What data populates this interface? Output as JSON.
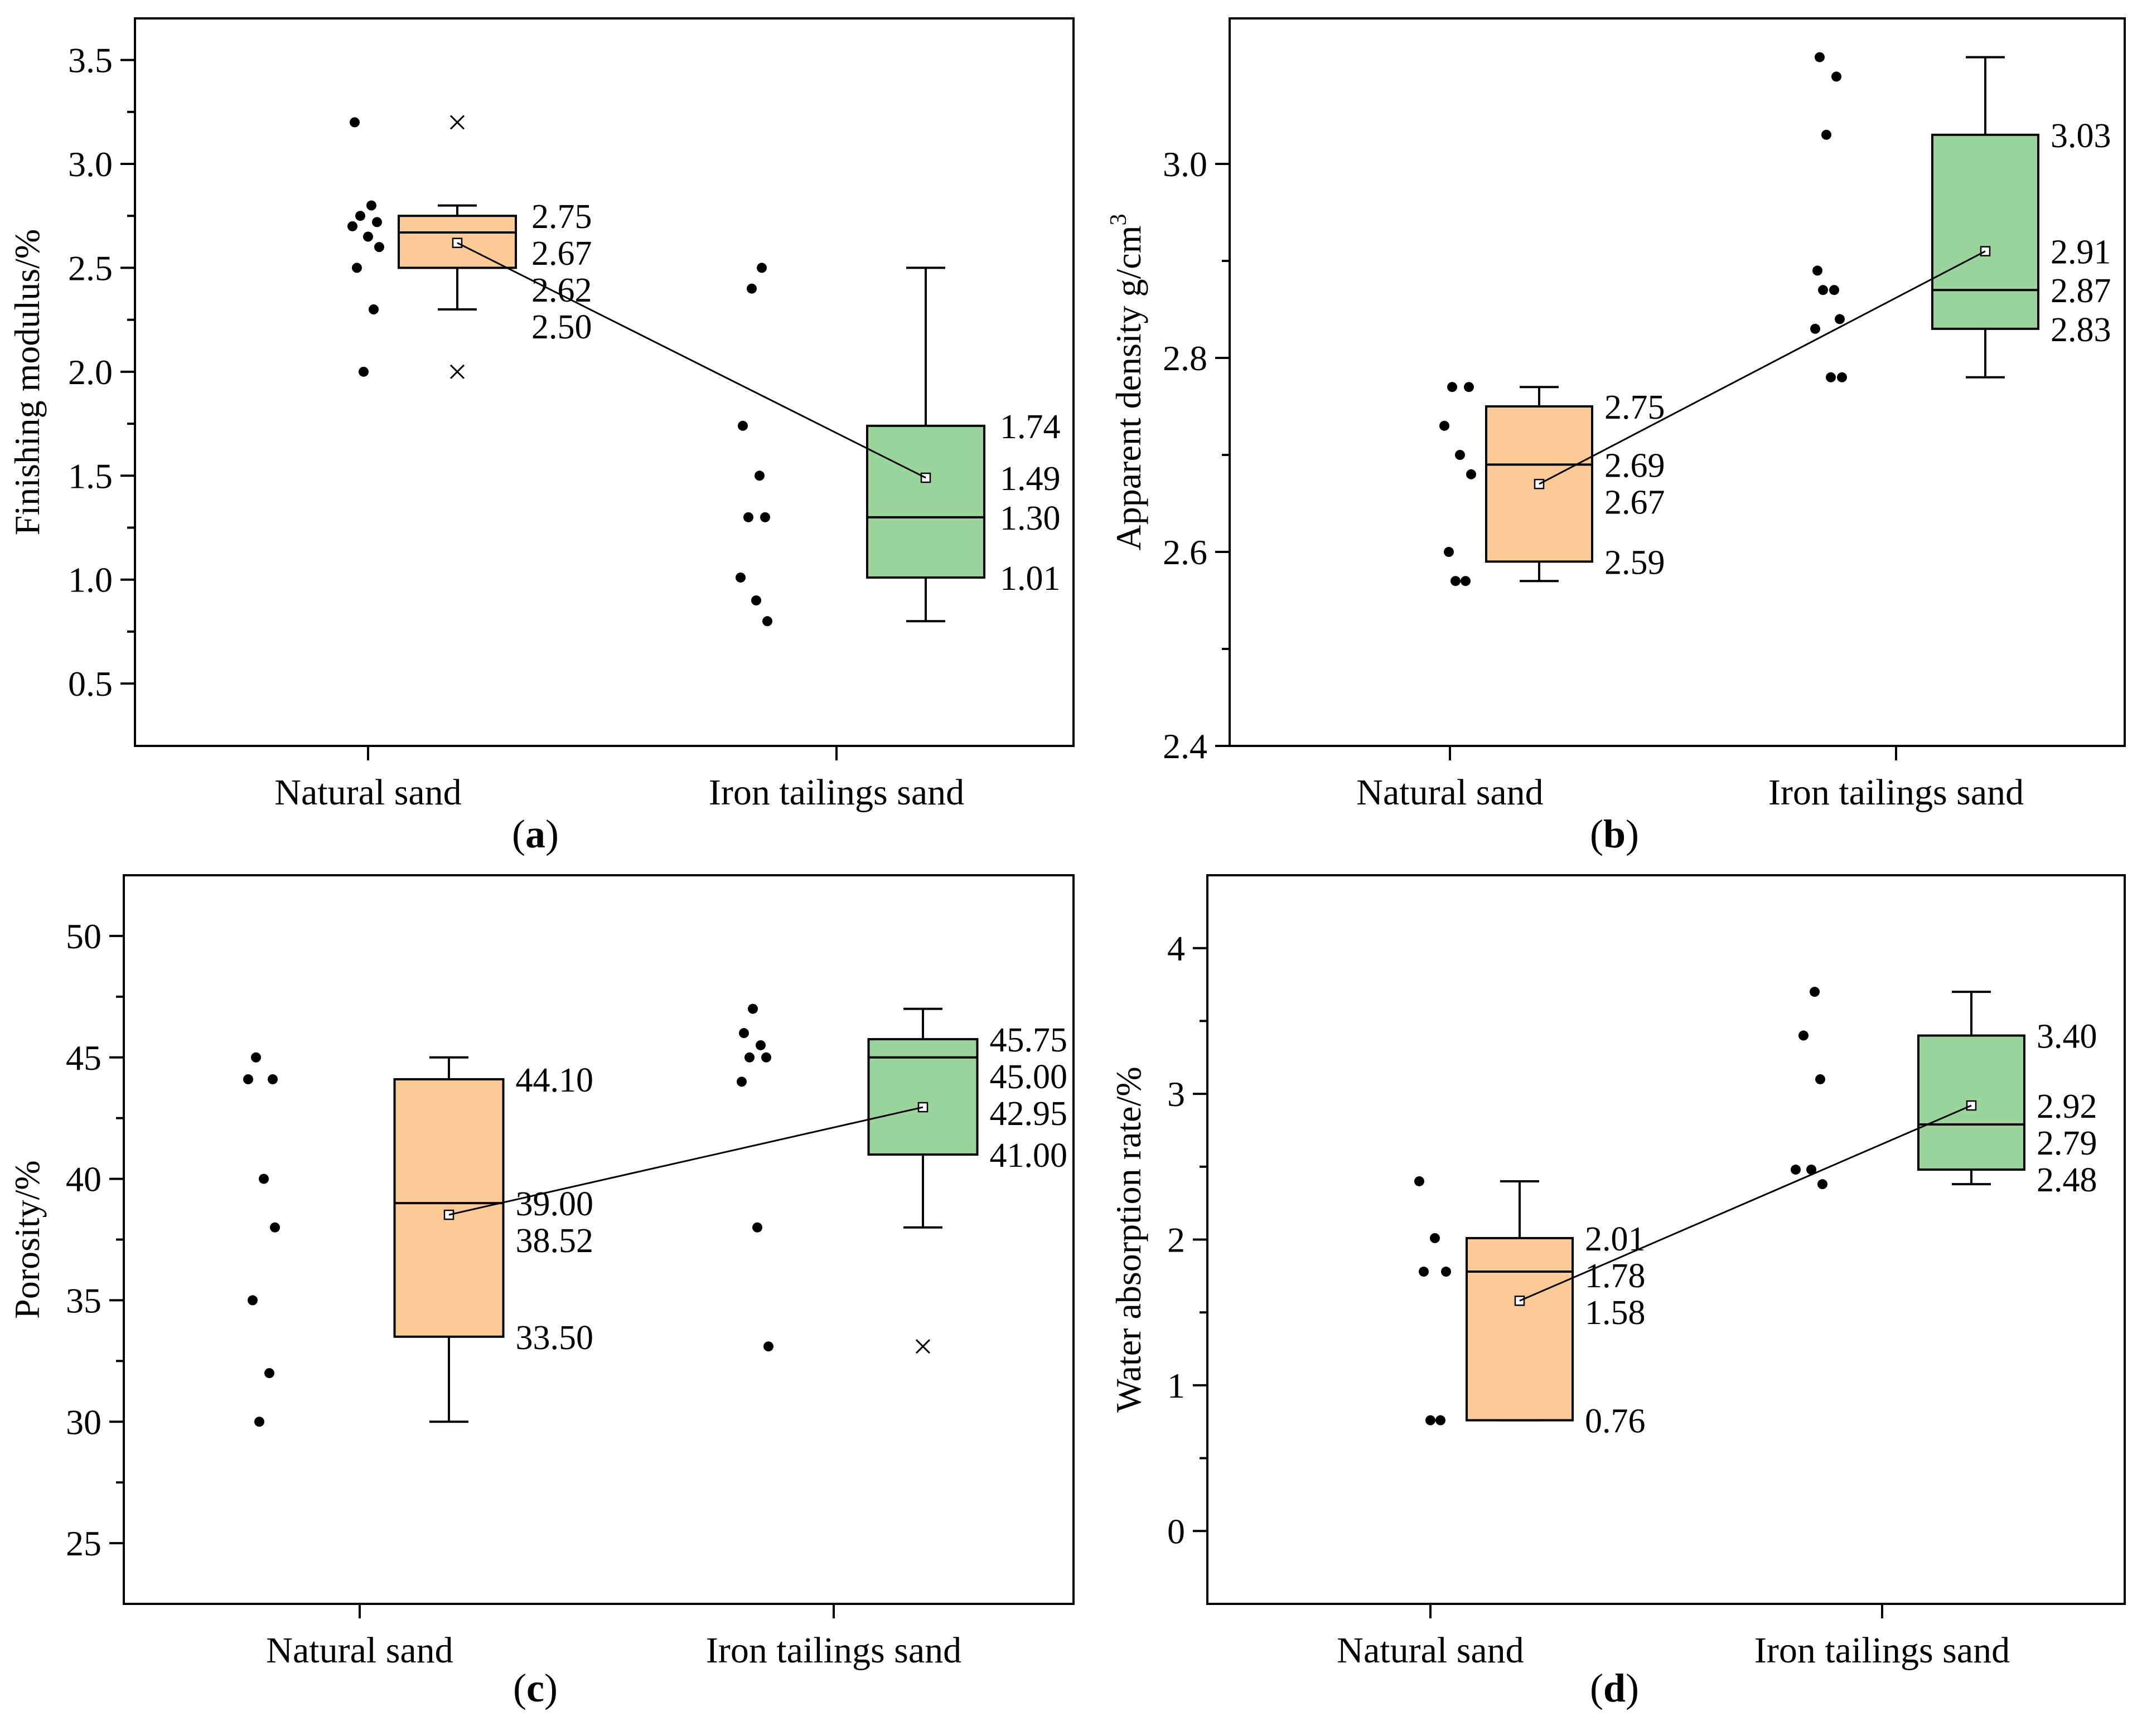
{
  "chart_data": [
    {
      "type": "box",
      "panel_label": "a",
      "ylabel": "Finishing modulus/%",
      "ylim": [
        0.2,
        3.7
      ],
      "yticks": [
        0.5,
        1.0,
        1.5,
        2.0,
        2.5,
        3.0,
        3.5
      ],
      "ytick_labels": [
        "0.5",
        "1.0",
        "1.5",
        "2.0",
        "2.5",
        "3.0",
        "3.5"
      ],
      "categories": [
        "Natural sand",
        "Iron tailings sand"
      ],
      "series": [
        {
          "name": "Natural sand",
          "color": "#fccb95",
          "q1": 2.5,
          "median": 2.67,
          "mean": 2.62,
          "q3": 2.75,
          "whisker_low": 2.3,
          "whisker_high": 2.8,
          "outliers": [
            2.0,
            3.2
          ],
          "raw_points": [
            2.0,
            2.3,
            2.5,
            2.6,
            2.65,
            2.7,
            2.72,
            2.75,
            2.8,
            3.2
          ],
          "labels": [
            {
              "text": "2.75",
              "value": 2.75
            },
            {
              "text": "2.67",
              "value": 2.67
            },
            {
              "text": "2.62",
              "value": 2.62
            },
            {
              "text": "2.50",
              "value": 2.5
            }
          ]
        },
        {
          "name": "Iron tailings sand",
          "color": "#99d59b",
          "q1": 1.01,
          "median": 1.3,
          "mean": 1.49,
          "q3": 1.74,
          "whisker_low": 0.8,
          "whisker_high": 2.5,
          "outliers": [],
          "raw_points": [
            0.8,
            0.9,
            1.01,
            1.3,
            1.3,
            1.5,
            1.74,
            2.4,
            2.5
          ],
          "labels": [
            {
              "text": "1.74",
              "value": 1.74
            },
            {
              "text": "1.49",
              "value": 1.49
            },
            {
              "text": "1.30",
              "value": 1.3
            },
            {
              "text": "1.01",
              "value": 1.01
            }
          ]
        }
      ]
    },
    {
      "type": "box",
      "panel_label": "b",
      "ylabel": "Apparent density g/cm",
      "ylabel_sup": "3",
      "ylim": [
        2.4,
        3.15
      ],
      "yticks": [
        2.4,
        2.6,
        2.8,
        3.0
      ],
      "ytick_labels": [
        "2.4",
        "2.6",
        "2.8",
        "3.0"
      ],
      "categories": [
        "Natural sand",
        "Iron tailings sand"
      ],
      "series": [
        {
          "name": "Natural sand",
          "color": "#fccb95",
          "q1": 2.59,
          "median": 2.69,
          "mean": 2.67,
          "q3": 2.75,
          "whisker_low": 2.57,
          "whisker_high": 2.77,
          "outliers": [],
          "raw_points": [
            2.57,
            2.57,
            2.6,
            2.68,
            2.7,
            2.73,
            2.77,
            2.77
          ],
          "labels": [
            {
              "text": "2.75",
              "value": 2.75
            },
            {
              "text": "2.69",
              "value": 2.69
            },
            {
              "text": "2.67",
              "value": 2.67
            },
            {
              "text": "2.59",
              "value": 2.59
            }
          ]
        },
        {
          "name": "Iron tailings sand",
          "color": "#99d59b",
          "q1": 2.83,
          "median": 2.87,
          "mean": 2.91,
          "q3": 3.03,
          "whisker_low": 2.78,
          "whisker_high": 3.11,
          "outliers": [],
          "raw_points": [
            2.78,
            2.78,
            2.83,
            2.84,
            2.87,
            2.87,
            2.89,
            3.03,
            3.09,
            3.11
          ],
          "labels": [
            {
              "text": "3.03",
              "value": 3.03
            },
            {
              "text": "2.91",
              "value": 2.91
            },
            {
              "text": "2.87",
              "value": 2.87
            },
            {
              "text": "2.83",
              "value": 2.83
            }
          ]
        }
      ]
    },
    {
      "type": "box",
      "panel_label": "c",
      "ylabel": "Porosity/%",
      "ylim": [
        22.5,
        52.5
      ],
      "yticks": [
        25,
        30,
        35,
        40,
        45,
        50
      ],
      "ytick_labels": [
        "25",
        "30",
        "35",
        "40",
        "45",
        "50"
      ],
      "categories": [
        "Natural sand",
        "Iron tailings sand"
      ],
      "series": [
        {
          "name": "Natural sand",
          "color": "#fccb95",
          "q1": 33.5,
          "median": 39.0,
          "mean": 38.52,
          "q3": 44.1,
          "whisker_low": 30.0,
          "whisker_high": 45.0,
          "outliers": [],
          "raw_points": [
            30,
            32,
            35,
            38,
            40,
            44.1,
            44.1,
            45
          ],
          "labels": [
            {
              "text": "44.10",
              "value": 44.1
            },
            {
              "text": "39.00",
              "value": 39.0
            },
            {
              "text": "38.52",
              "value": 38.52
            },
            {
              "text": "33.50",
              "value": 33.5
            }
          ]
        },
        {
          "name": "Iron tailings sand",
          "color": "#99d59b",
          "q1": 41.0,
          "median": 45.0,
          "mean": 42.95,
          "q3": 45.75,
          "whisker_low": 38.0,
          "whisker_high": 47.0,
          "outliers": [
            33.1
          ],
          "raw_points": [
            33.1,
            38,
            44,
            45,
            45,
            45.5,
            46,
            47
          ],
          "labels": [
            {
              "text": "45.75",
              "value": 45.75
            },
            {
              "text": "45.00",
              "value": 45.0
            },
            {
              "text": "42.95",
              "value": 42.95
            },
            {
              "text": "41.00",
              "value": 41.0
            }
          ]
        }
      ]
    },
    {
      "type": "box",
      "panel_label": "d",
      "ylabel": "Water absorption rate/%",
      "ylim": [
        -0.5,
        4.5
      ],
      "yticks": [
        0,
        1,
        2,
        3,
        4
      ],
      "ytick_labels": [
        "0",
        "1",
        "2",
        "3",
        "4"
      ],
      "categories": [
        "Natural sand",
        "Iron tailings sand"
      ],
      "series": [
        {
          "name": "Natural sand",
          "color": "#fccb95",
          "q1": 0.76,
          "median": 1.78,
          "mean": 1.58,
          "q3": 2.01,
          "whisker_low": 0.76,
          "whisker_high": 2.4,
          "outliers": [],
          "raw_points": [
            0.76,
            0.76,
            1.78,
            1.78,
            2.01,
            2.4
          ],
          "labels": [
            {
              "text": "2.01",
              "value": 2.01
            },
            {
              "text": "1.78",
              "value": 1.78
            },
            {
              "text": "1.58",
              "value": 1.58
            },
            {
              "text": "0.76",
              "value": 0.76
            }
          ]
        },
        {
          "name": "Iron tailings sand",
          "color": "#99d59b",
          "q1": 2.48,
          "median": 2.79,
          "mean": 2.92,
          "q3": 3.4,
          "whisker_low": 2.38,
          "whisker_high": 3.7,
          "outliers": [],
          "raw_points": [
            2.38,
            2.48,
            2.48,
            3.1,
            3.4,
            3.7
          ],
          "labels": [
            {
              "text": "3.40",
              "value": 3.4
            },
            {
              "text": "2.92",
              "value": 2.92
            },
            {
              "text": "2.79",
              "value": 2.79
            },
            {
              "text": "2.48",
              "value": 2.48
            }
          ]
        }
      ]
    }
  ]
}
